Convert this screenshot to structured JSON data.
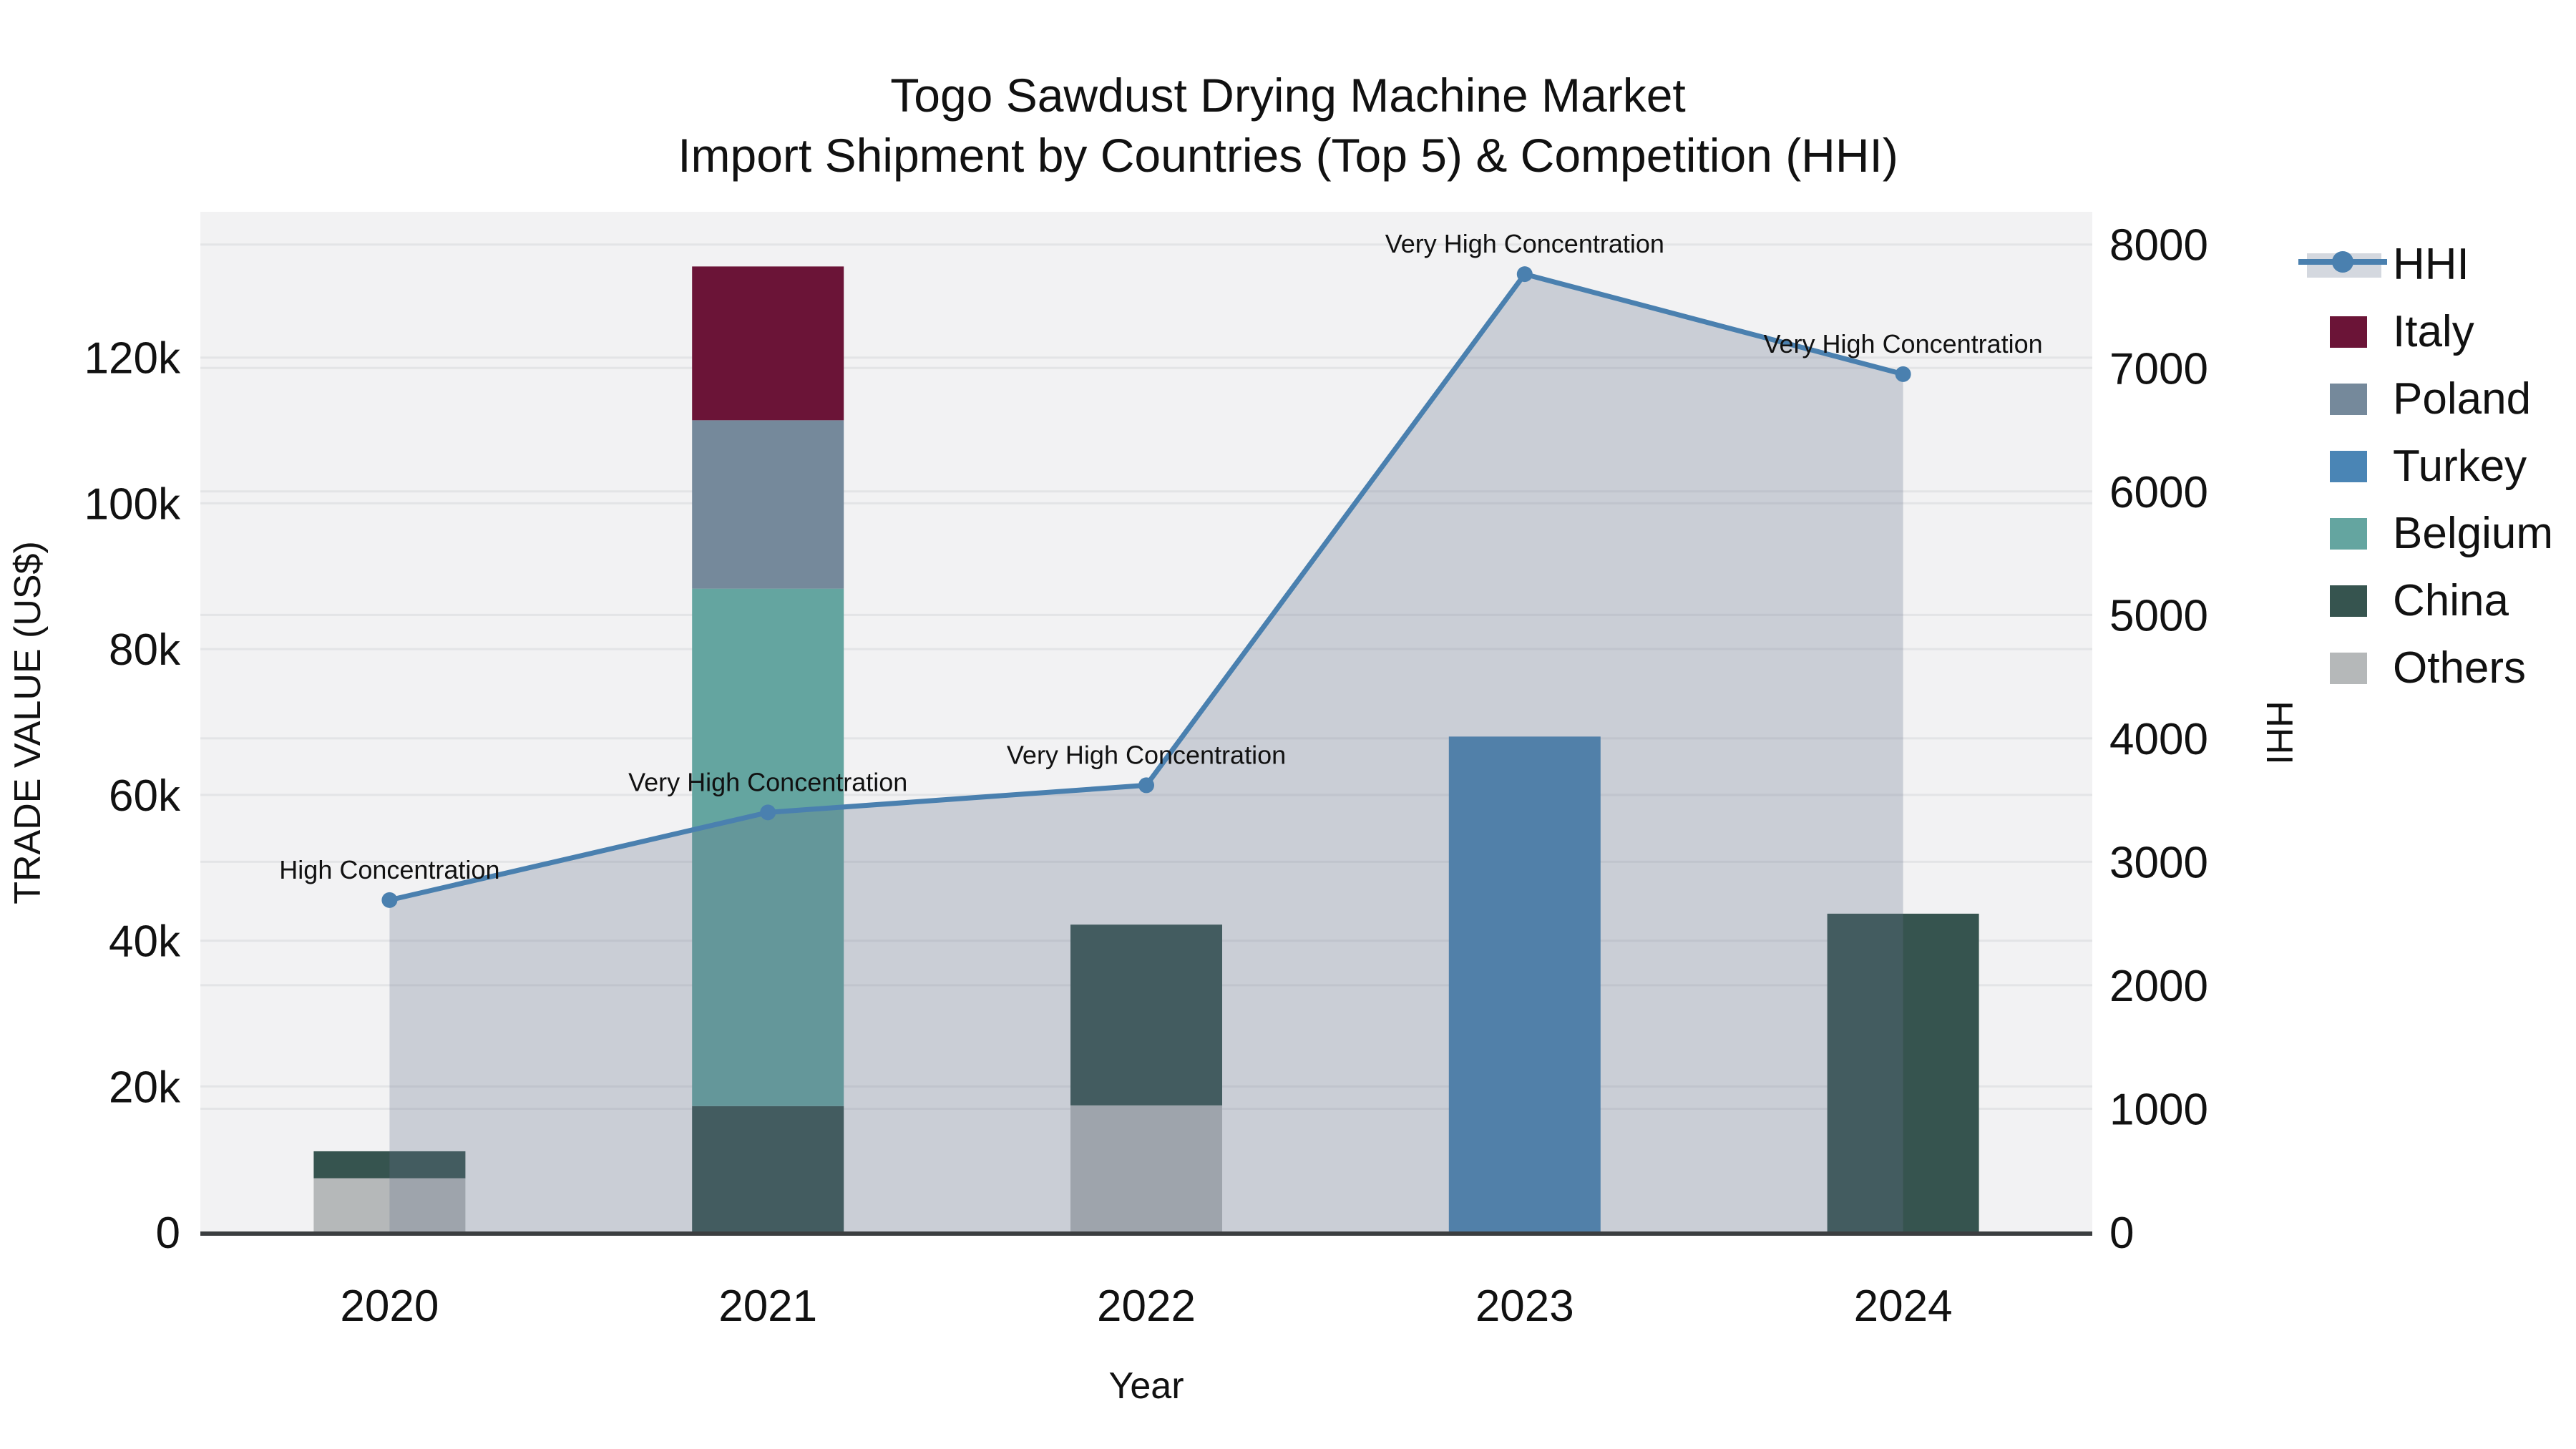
{
  "title": {
    "line1": "Togo Sawdust Drying Machine Market",
    "line2": "Import Shipment by Countries (Top 5) & Competition (HHI)"
  },
  "axes": {
    "x_label": "Year",
    "y_left_label": "TRADE VALUE (US$)",
    "y_right_label": "HHI",
    "x_ticks": [
      "2020",
      "2021",
      "2022",
      "2023",
      "2024"
    ],
    "y_left_ticks": [
      {
        "value": 0,
        "label": "0"
      },
      {
        "value": 20000,
        "label": "20k"
      },
      {
        "value": 40000,
        "label": "40k"
      },
      {
        "value": 60000,
        "label": "60k"
      },
      {
        "value": 80000,
        "label": "80k"
      },
      {
        "value": 100000,
        "label": "100k"
      },
      {
        "value": 120000,
        "label": "120k"
      }
    ],
    "y_right_ticks": [
      {
        "value": 0,
        "label": "0"
      },
      {
        "value": 1000,
        "label": "1000"
      },
      {
        "value": 2000,
        "label": "2000"
      },
      {
        "value": 3000,
        "label": "3000"
      },
      {
        "value": 4000,
        "label": "4000"
      },
      {
        "value": 5000,
        "label": "5000"
      },
      {
        "value": 6000,
        "label": "6000"
      },
      {
        "value": 7000,
        "label": "7000"
      },
      {
        "value": 8000,
        "label": "8000"
      }
    ],
    "y_left_max": 140000,
    "y_right_max": 8265
  },
  "chart_data": {
    "type": "combo: stacked-bar (left axis) + line-area (right axis)",
    "categories": [
      "2020",
      "2021",
      "2022",
      "2023",
      "2024"
    ],
    "bar_series": [
      {
        "name": "Others",
        "color": "#b5b8b9",
        "values": [
          7400,
          0,
          17400,
          0,
          0
        ]
      },
      {
        "name": "China",
        "color": "#36544f",
        "values": [
          3700,
          17300,
          24800,
          0,
          43700
        ]
      },
      {
        "name": "Belgium",
        "color": "#64a5a0",
        "values": [
          0,
          71000,
          0,
          0,
          0
        ]
      },
      {
        "name": "Turkey",
        "color": "#4a85b5",
        "values": [
          0,
          0,
          0,
          68000,
          0
        ]
      },
      {
        "name": "Poland",
        "color": "#75899b",
        "values": [
          0,
          23100,
          0,
          0,
          0
        ]
      },
      {
        "name": "Italy",
        "color": "#6b1437",
        "values": [
          0,
          21100,
          0,
          0,
          0
        ]
      }
    ],
    "stack_order": "bottom-to-top as listed",
    "line_series": {
      "name": "HHI",
      "axis": "right",
      "color": "#4a80af",
      "fill": "rgba(100,115,140,0.28)",
      "values": [
        2690,
        3400,
        3620,
        7760,
        6950
      ]
    },
    "annotations": [
      {
        "category": "2020",
        "text": "High Concentration"
      },
      {
        "category": "2021",
        "text": "Very High Concentration"
      },
      {
        "category": "2022",
        "text": "Very High Concentration"
      },
      {
        "category": "2023",
        "text": "Very High Concentration"
      },
      {
        "category": "2024",
        "text": "Very High Concentration"
      }
    ]
  },
  "legend": {
    "items": [
      {
        "label": "HHI",
        "type": "line",
        "color": "#4a80af"
      },
      {
        "label": "Italy",
        "type": "swatch",
        "color": "#6b1437"
      },
      {
        "label": "Poland",
        "type": "swatch",
        "color": "#75899b"
      },
      {
        "label": "Turkey",
        "type": "swatch",
        "color": "#4a85b5"
      },
      {
        "label": "Belgium",
        "type": "swatch",
        "color": "#64a5a0"
      },
      {
        "label": "China",
        "type": "swatch",
        "color": "#36544f"
      },
      {
        "label": "Others",
        "type": "swatch",
        "color": "#b5b8b9"
      }
    ]
  },
  "colors": {
    "plot_bg": "#f2f2f3",
    "grid": "#e3e4e6",
    "baseline": "#3b3e40",
    "text": "#111111",
    "line": "#4a80af",
    "area_fill": "rgba(100,115,140,0.28)"
  }
}
